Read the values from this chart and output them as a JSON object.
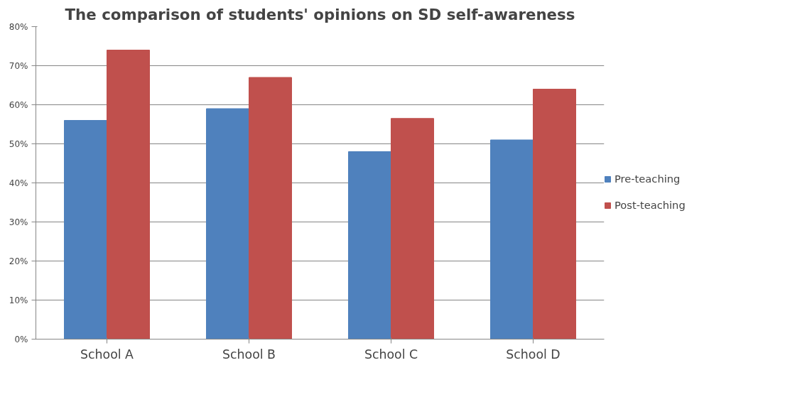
{
  "chart_data": {
    "type": "bar",
    "title": "The comparison of students' opinions on SD self-awareness",
    "categories": [
      "School A",
      "School B",
      "School C",
      "School D"
    ],
    "series": [
      {
        "name": "Pre-teaching",
        "color": "#4f81bd",
        "values": [
          56,
          59,
          48,
          51
        ]
      },
      {
        "name": "Post-teaching",
        "color": "#c0504d",
        "values": [
          74,
          67,
          56.5,
          64
        ]
      }
    ],
    "ylim": [
      0,
      80
    ],
    "yticks": [
      {
        "value": 0,
        "label": "0%"
      },
      {
        "value": 10,
        "label": "10%"
      },
      {
        "value": 20,
        "label": "20%"
      },
      {
        "value": 30,
        "label": "30%"
      },
      {
        "value": 40,
        "label": "40%"
      },
      {
        "value": 50,
        "label": "50%"
      },
      {
        "value": 60,
        "label": "60%"
      },
      {
        "value": 70,
        "label": "70%"
      },
      {
        "value": 80,
        "label": "80%"
      }
    ],
    "grid": "y",
    "legend": "right"
  }
}
